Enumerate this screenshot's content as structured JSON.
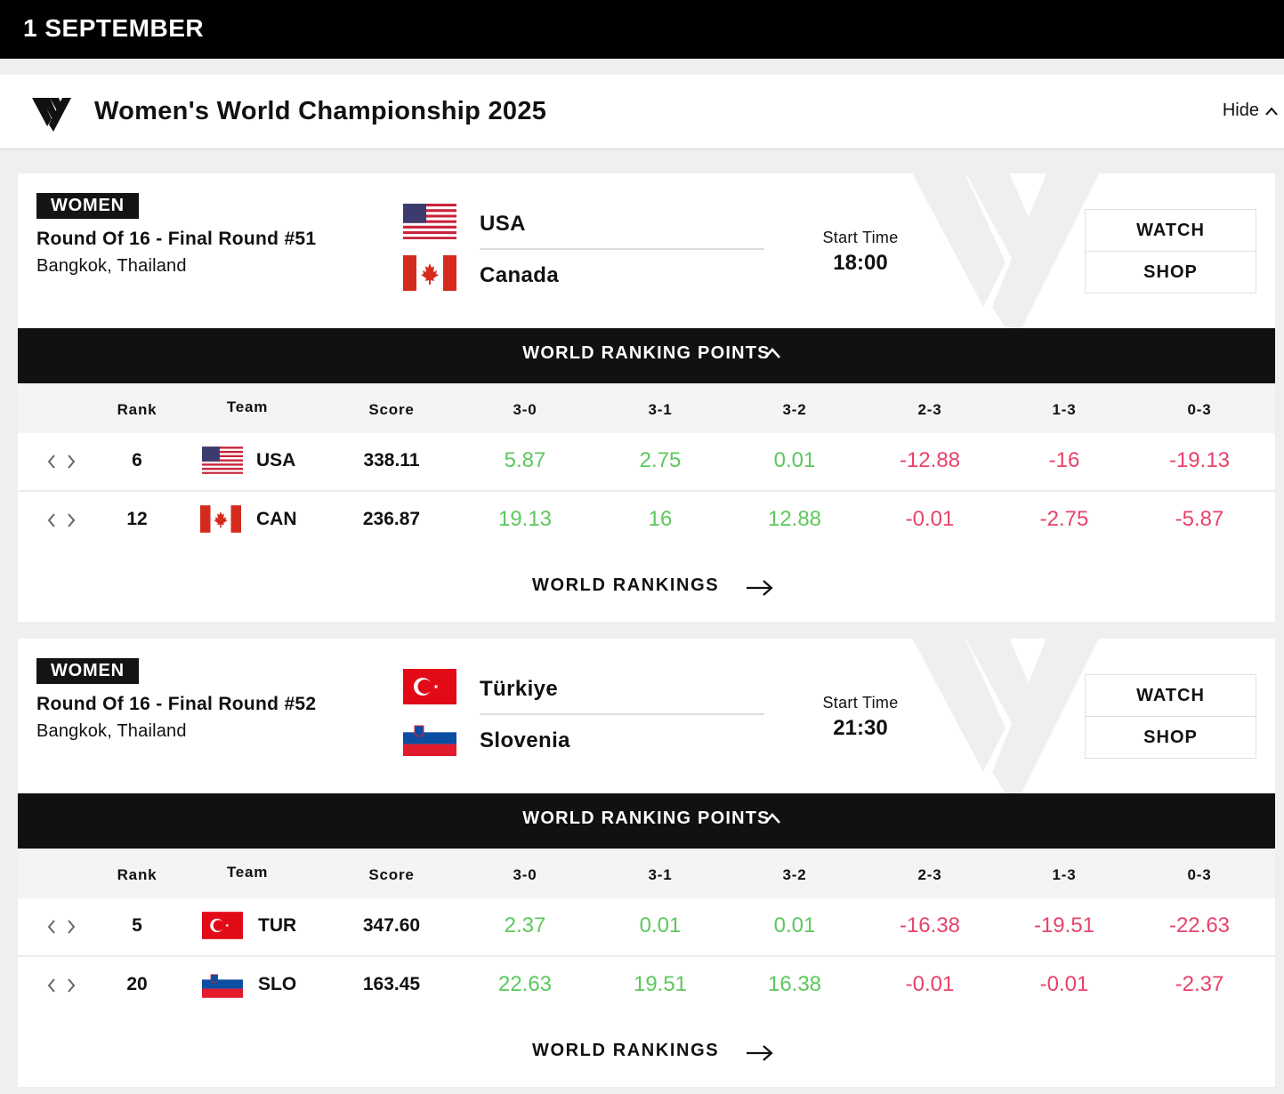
{
  "date_header": "1 SEPTEMBER",
  "championship": {
    "title": "Women's World Championship 2025",
    "hide_label": "Hide"
  },
  "colors": {
    "positive": "#5cc85c",
    "negative": "#e8426b",
    "dark": "#111111"
  },
  "matches": [
    {
      "category": "WOMEN",
      "round": "Round Of 16 - Final Round #51",
      "location": "Bangkok, Thailand",
      "team_a": {
        "name": "USA",
        "flag": "usa-flag"
      },
      "team_b": {
        "name": "Canada",
        "flag": "canada-flag"
      },
      "start_label": "Start Time",
      "start_time": "18:00",
      "watch_label": "WATCH",
      "shop_label": "SHOP",
      "wrp_label": "WORLD RANKING POINTS",
      "headers": [
        "Rank",
        "Team",
        "Score",
        "3-0",
        "3-1",
        "3-2",
        "2-3",
        "1-3",
        "0-3"
      ],
      "rows": [
        {
          "rank": "6",
          "team": "USA",
          "flag": "usa-flag",
          "score": "338.11",
          "values": [
            "5.87",
            "2.75",
            "0.01",
            "-12.88",
            "-16",
            "-19.13"
          ]
        },
        {
          "rank": "12",
          "team": "CAN",
          "flag": "canada-flag",
          "score": "236.87",
          "values": [
            "19.13",
            "16",
            "12.88",
            "-0.01",
            "-2.75",
            "-5.87"
          ]
        }
      ],
      "rankings_link": "WORLD RANKINGS"
    },
    {
      "category": "WOMEN",
      "round": "Round Of 16 - Final Round #52",
      "location": "Bangkok, Thailand",
      "team_a": {
        "name": "Türkiye",
        "flag": "turkey-flag"
      },
      "team_b": {
        "name": "Slovenia",
        "flag": "slovenia-flag"
      },
      "start_label": "Start Time",
      "start_time": "21:30",
      "watch_label": "WATCH",
      "shop_label": "SHOP",
      "wrp_label": "WORLD RANKING POINTS",
      "headers": [
        "Rank",
        "Team",
        "Score",
        "3-0",
        "3-1",
        "3-2",
        "2-3",
        "1-3",
        "0-3"
      ],
      "rows": [
        {
          "rank": "5",
          "team": "TUR",
          "flag": "turkey-flag",
          "score": "347.60",
          "values": [
            "2.37",
            "0.01",
            "0.01",
            "-16.38",
            "-19.51",
            "-22.63"
          ]
        },
        {
          "rank": "20",
          "team": "SLO",
          "flag": "slovenia-flag",
          "score": "163.45",
          "values": [
            "22.63",
            "19.51",
            "16.38",
            "-0.01",
            "-0.01",
            "-2.37"
          ]
        }
      ],
      "rankings_link": "WORLD RANKINGS"
    }
  ]
}
